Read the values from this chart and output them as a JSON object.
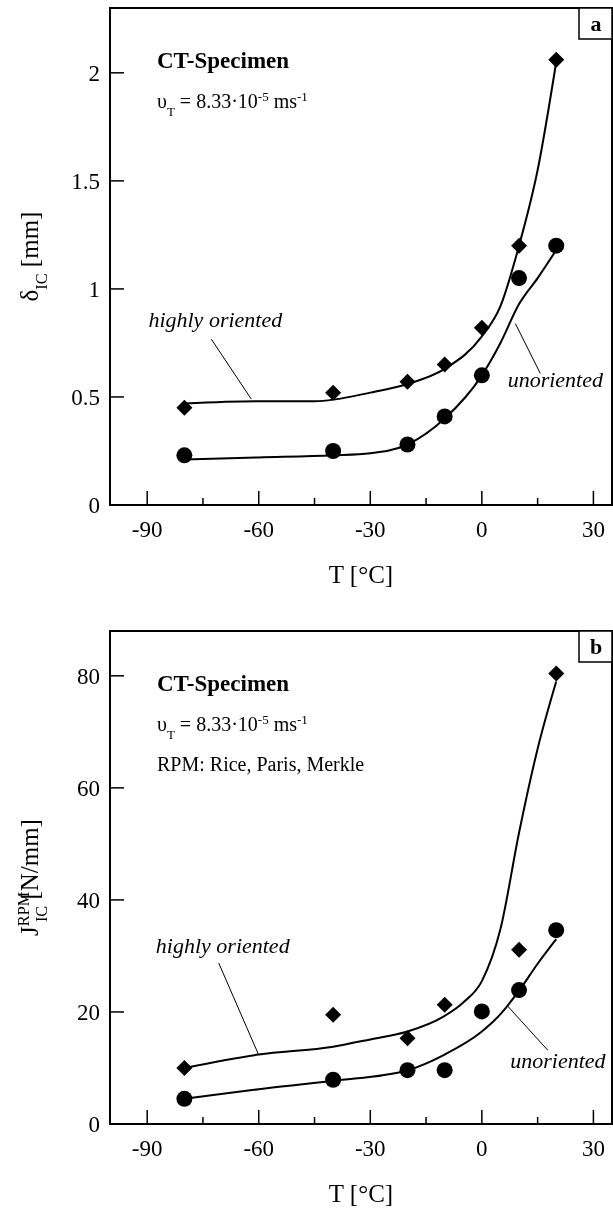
{
  "chart_data": [
    {
      "type": "scatter",
      "title": "a",
      "xlabel": "T  [°C]",
      "ylabel": "δ$_{IC}$  [mm]",
      "xlim": [
        -100,
        35
      ],
      "ylim": [
        0,
        2.3
      ],
      "xticks": [
        -90,
        {
          "value": -75,
          "label": null
        },
        -60,
        {
          "value": -45,
          "label": null
        },
        -30,
        {
          "value": -15,
          "label": null
        },
        0,
        {
          "value": 15,
          "label": null
        },
        30
      ],
      "yticks": [
        0,
        0.5,
        1,
        1.5,
        2
      ],
      "grid": false,
      "annotations": [
        "CT-Specimen",
        "υ$_{T}$ = 8.33·10$^{-5}$  ms$^{-1}$",
        {
          "text": "highly oriented",
          "x": -62,
          "y": 0.49
        },
        {
          "text": "unoriented",
          "x": 9,
          "y": 0.84
        }
      ],
      "series": [
        {
          "marker": "diamond",
          "color": "#000000",
          "x": [
            -80,
            -40,
            -20,
            -10,
            0,
            10,
            20
          ],
          "values": [
            0.45,
            0.52,
            0.57,
            0.65,
            0.82,
            1.2,
            2.06
          ]
        },
        {
          "marker": "circle",
          "color": "#000000",
          "x": [
            -80,
            -40,
            -20,
            -10,
            0,
            10,
            20
          ],
          "values": [
            0.23,
            0.25,
            0.28,
            0.41,
            0.6,
            1.05,
            1.2
          ]
        },
        {
          "type": "line",
          "line_style": "solid",
          "color": "#000000",
          "x": [
            -80,
            -60,
            -45,
            -30,
            -20,
            -10,
            0,
            5,
            10,
            15,
            20
          ],
          "values": [
            0.47,
            0.48,
            0.48,
            0.52,
            0.56,
            0.63,
            0.78,
            0.92,
            1.2,
            1.55,
            2.05
          ]
        },
        {
          "type": "line",
          "line_style": "solid",
          "color": "#000000",
          "x": [
            -80,
            -60,
            -40,
            -30,
            -20,
            -10,
            0,
            5,
            10,
            15,
            20
          ],
          "values": [
            0.21,
            0.22,
            0.23,
            0.24,
            0.28,
            0.4,
            0.6,
            0.75,
            0.93,
            1.05,
            1.18
          ]
        }
      ]
    },
    {
      "type": "scatter",
      "title": "b",
      "xlabel": "T  [°C]",
      "ylabel": "J$^{RPM}$$_{IC}$  [N/mm]",
      "xlim": [
        -100,
        35
      ],
      "ylim": [
        0,
        88
      ],
      "xticks": [
        -90,
        {
          "value": -75,
          "label": null
        },
        -60,
        {
          "value": -45,
          "label": null
        },
        -30,
        {
          "value": -15,
          "label": null
        },
        0,
        {
          "value": 15,
          "label": null
        },
        30
      ],
      "yticks": [
        0,
        20,
        40,
        60,
        80
      ],
      "grid": false,
      "annotations": [
        "CT-Specimen",
        "υ$_{T}$ = 8.33·10$^{-5}$  ms$^{-1}$",
        "RPM: Rice, Paris, Merkle",
        {
          "text": "highly oriented",
          "x": -60,
          "y": 12.3
        },
        {
          "text": "unoriented",
          "x": 7,
          "y": 21
        }
      ],
      "series": [
        {
          "marker": "diamond",
          "color": "#000000",
          "x": [
            -80,
            -40,
            -20,
            -10,
            10,
            20
          ],
          "values": [
            10,
            19.5,
            15.3,
            21.3,
            31.1,
            80.4
          ]
        },
        {
          "marker": "circle",
          "color": "#000000",
          "x": [
            -80,
            -40,
            -20,
            -10,
            0,
            10,
            20
          ],
          "values": [
            4.5,
            7.9,
            9.6,
            9.6,
            20.1,
            23.9,
            34.6
          ]
        },
        {
          "type": "line",
          "line_style": "solid",
          "color": "#000000",
          "x": [
            -80,
            -60,
            -40,
            -30,
            -20,
            -10,
            -5,
            0,
            5,
            10,
            15,
            20
          ],
          "values": [
            10,
            12.4,
            13.8,
            15.1,
            16.5,
            19.3,
            21.7,
            25.5,
            34.8,
            52,
            67,
            79
          ]
        },
        {
          "type": "line",
          "line_style": "solid",
          "color": "#000000",
          "x": [
            -80,
            -60,
            -40,
            -20,
            -10,
            0,
            5,
            10,
            15,
            20
          ],
          "values": [
            4.5,
            6.2,
            7.7,
            9.6,
            12.4,
            16.5,
            19.6,
            23.8,
            28.6,
            33
          ]
        }
      ]
    }
  ]
}
